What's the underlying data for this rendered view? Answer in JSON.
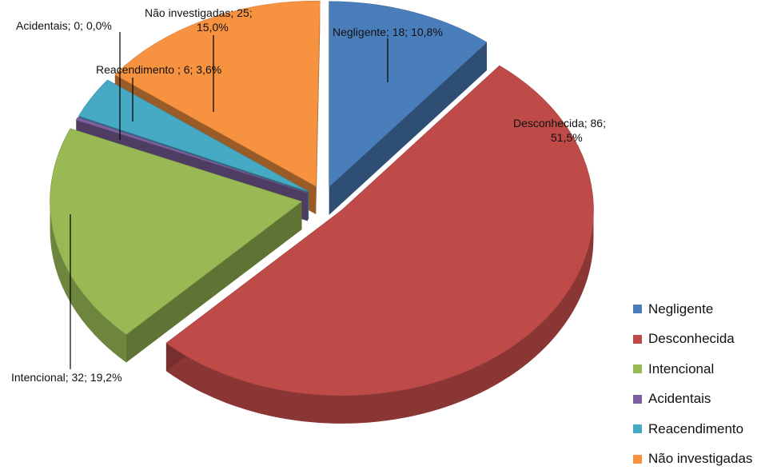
{
  "chart_data": {
    "type": "pie",
    "style": "3d-exploded",
    "title": "",
    "legend_position": "right",
    "slices": [
      {
        "label": "Negligente",
        "value": 18,
        "percent": "10,8%",
        "color": "#4A7EBB",
        "data_label": "Negligente; 18; 10,8%"
      },
      {
        "label": "Desconhecida",
        "value": 86,
        "percent": "51,5%",
        "color": "#BE4B48",
        "data_label_line1": "Desconhecida; 86;",
        "data_label_line2": "51,5%"
      },
      {
        "label": "Intencional",
        "value": 32,
        "percent": "19,2%",
        "color": "#98B954",
        "data_label": "Intencional; 32; 19,2%"
      },
      {
        "label": "Acidentais",
        "value": 0,
        "percent": "0,0%",
        "color": "#7D60A0",
        "data_label": "Acidentais; 0; 0,0%"
      },
      {
        "label": "Reacendimento",
        "value": 6,
        "percent": "3,6%",
        "color": "#46AAC5",
        "data_label": "Reacendimento ; 6; 3,6%"
      },
      {
        "label": "Não investigadas",
        "value": 25,
        "percent": "15,0%",
        "color": "#F69240",
        "data_label_line1": "Não investigadas; 25;",
        "data_label_line2": "15,0%"
      }
    ]
  }
}
